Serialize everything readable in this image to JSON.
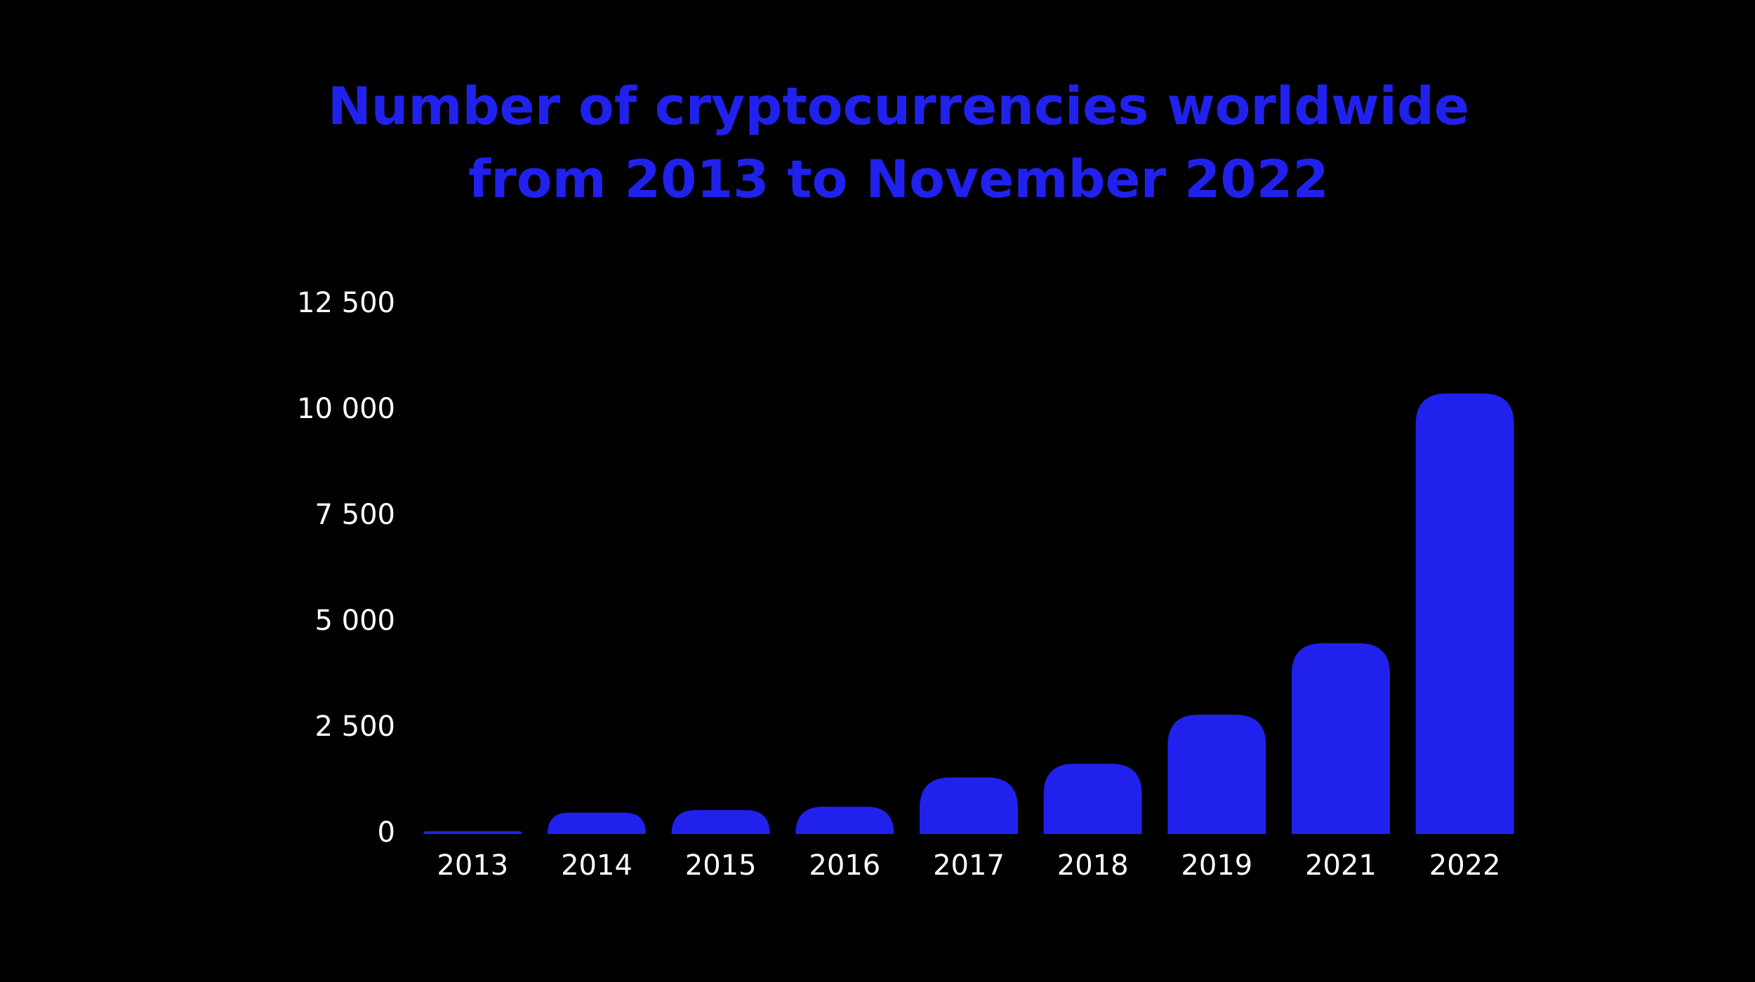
{
  "colors": {
    "background": "#000000",
    "accent": "#2121ee",
    "text": "#ffffff"
  },
  "chart_data": {
    "type": "bar",
    "title": "Number of cryptocurrencies worldwide from 2013 to November 2022",
    "title_lines": [
      "Number of cryptocurrencies worldwide",
      "from 2013 to November 2022"
    ],
    "xlabel": "",
    "ylabel": "",
    "categories": [
      "2013",
      "2014",
      "2015",
      "2016",
      "2017",
      "2018",
      "2019",
      "2021",
      "2022"
    ],
    "values": [
      66,
      506,
      562,
      644,
      1335,
      1658,
      2817,
      4501,
      10397
    ],
    "ylim": [
      0,
      12500
    ],
    "yticks": [
      0,
      2500,
      5000,
      7500,
      10000,
      12500
    ],
    "ytick_labels": [
      "0",
      "2 500",
      "5 000",
      "7 500",
      "10 000",
      "12 500"
    ],
    "grid": false,
    "legend": "none"
  }
}
